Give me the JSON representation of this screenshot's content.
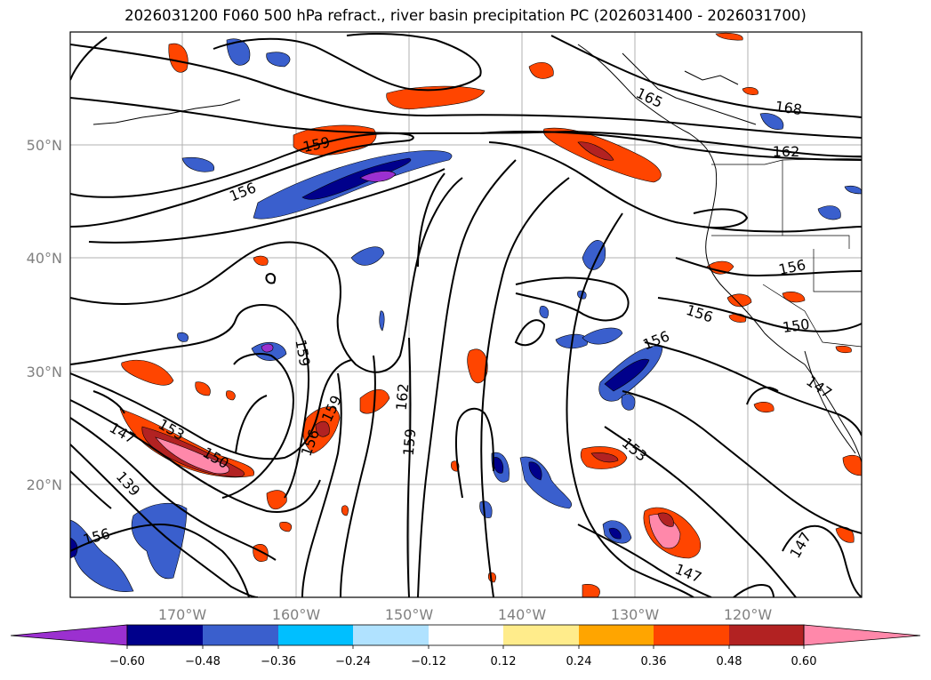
{
  "title": "2026031200 F060 500 hPa refract., river basin precipitation PC (2026031400 - 2026031700)",
  "lat_labels": [
    "50°N",
    "40°N",
    "30°N",
    "20°N"
  ],
  "lon_labels": [
    "170°W",
    "160°W",
    "150°W",
    "140°W",
    "130°W",
    "120°W"
  ],
  "contour_labels": [
    "168",
    "165",
    "162",
    "159",
    "156",
    "156",
    "156",
    "156",
    "156",
    "156",
    "153",
    "153",
    "150",
    "150",
    "147",
    "147",
    "147",
    "147",
    "139",
    "159",
    "159",
    "159",
    "162"
  ],
  "colorbar": {
    "ticks": [
      "−0.60",
      "−0.48",
      "−0.36",
      "−0.24",
      "−0.12",
      "0.12",
      "0.24",
      "0.36",
      "0.48",
      "0.60"
    ],
    "colors": [
      "#9b30d0",
      "#00008b",
      "#3a5fcd",
      "#00bfff",
      "#b0e2ff",
      "#ffffff",
      "#ffec8b",
      "#ffa500",
      "#ff4500",
      "#b22222",
      "#ff88aa"
    ]
  }
}
